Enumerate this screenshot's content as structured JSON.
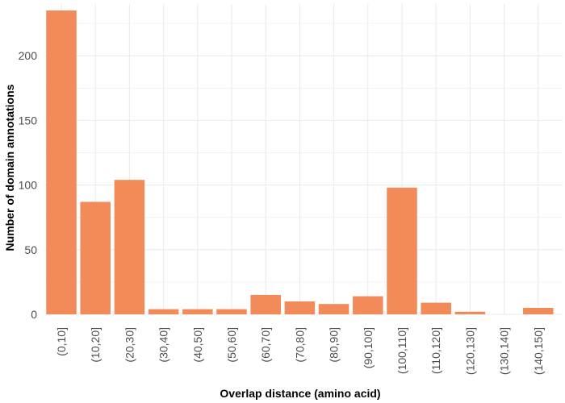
{
  "chart_data": {
    "type": "bar",
    "xlabel": "Overlap distance (amino acid)",
    "ylabel": "Number of domain annotations",
    "categories": [
      "(0,10]",
      "(10,20]",
      "(20,30]",
      "(30,40]",
      "(40,50]",
      "(50,60]",
      "(60,70]",
      "(70,80]",
      "(80,90]",
      "(90,100]",
      "(100,110]",
      "(110,120]",
      "(120,130]",
      "(130,140]",
      "(140,150]"
    ],
    "values": [
      235,
      87,
      104,
      4,
      4,
      4,
      15,
      10,
      8,
      14,
      98,
      9,
      2,
      0,
      5
    ],
    "ylim": [
      0,
      235
    ],
    "yticks": [
      0,
      50,
      100,
      150,
      200
    ],
    "grid": true,
    "legend": "none",
    "bar_color": "#F28A5A",
    "grid_color": "#EBEBEB"
  }
}
